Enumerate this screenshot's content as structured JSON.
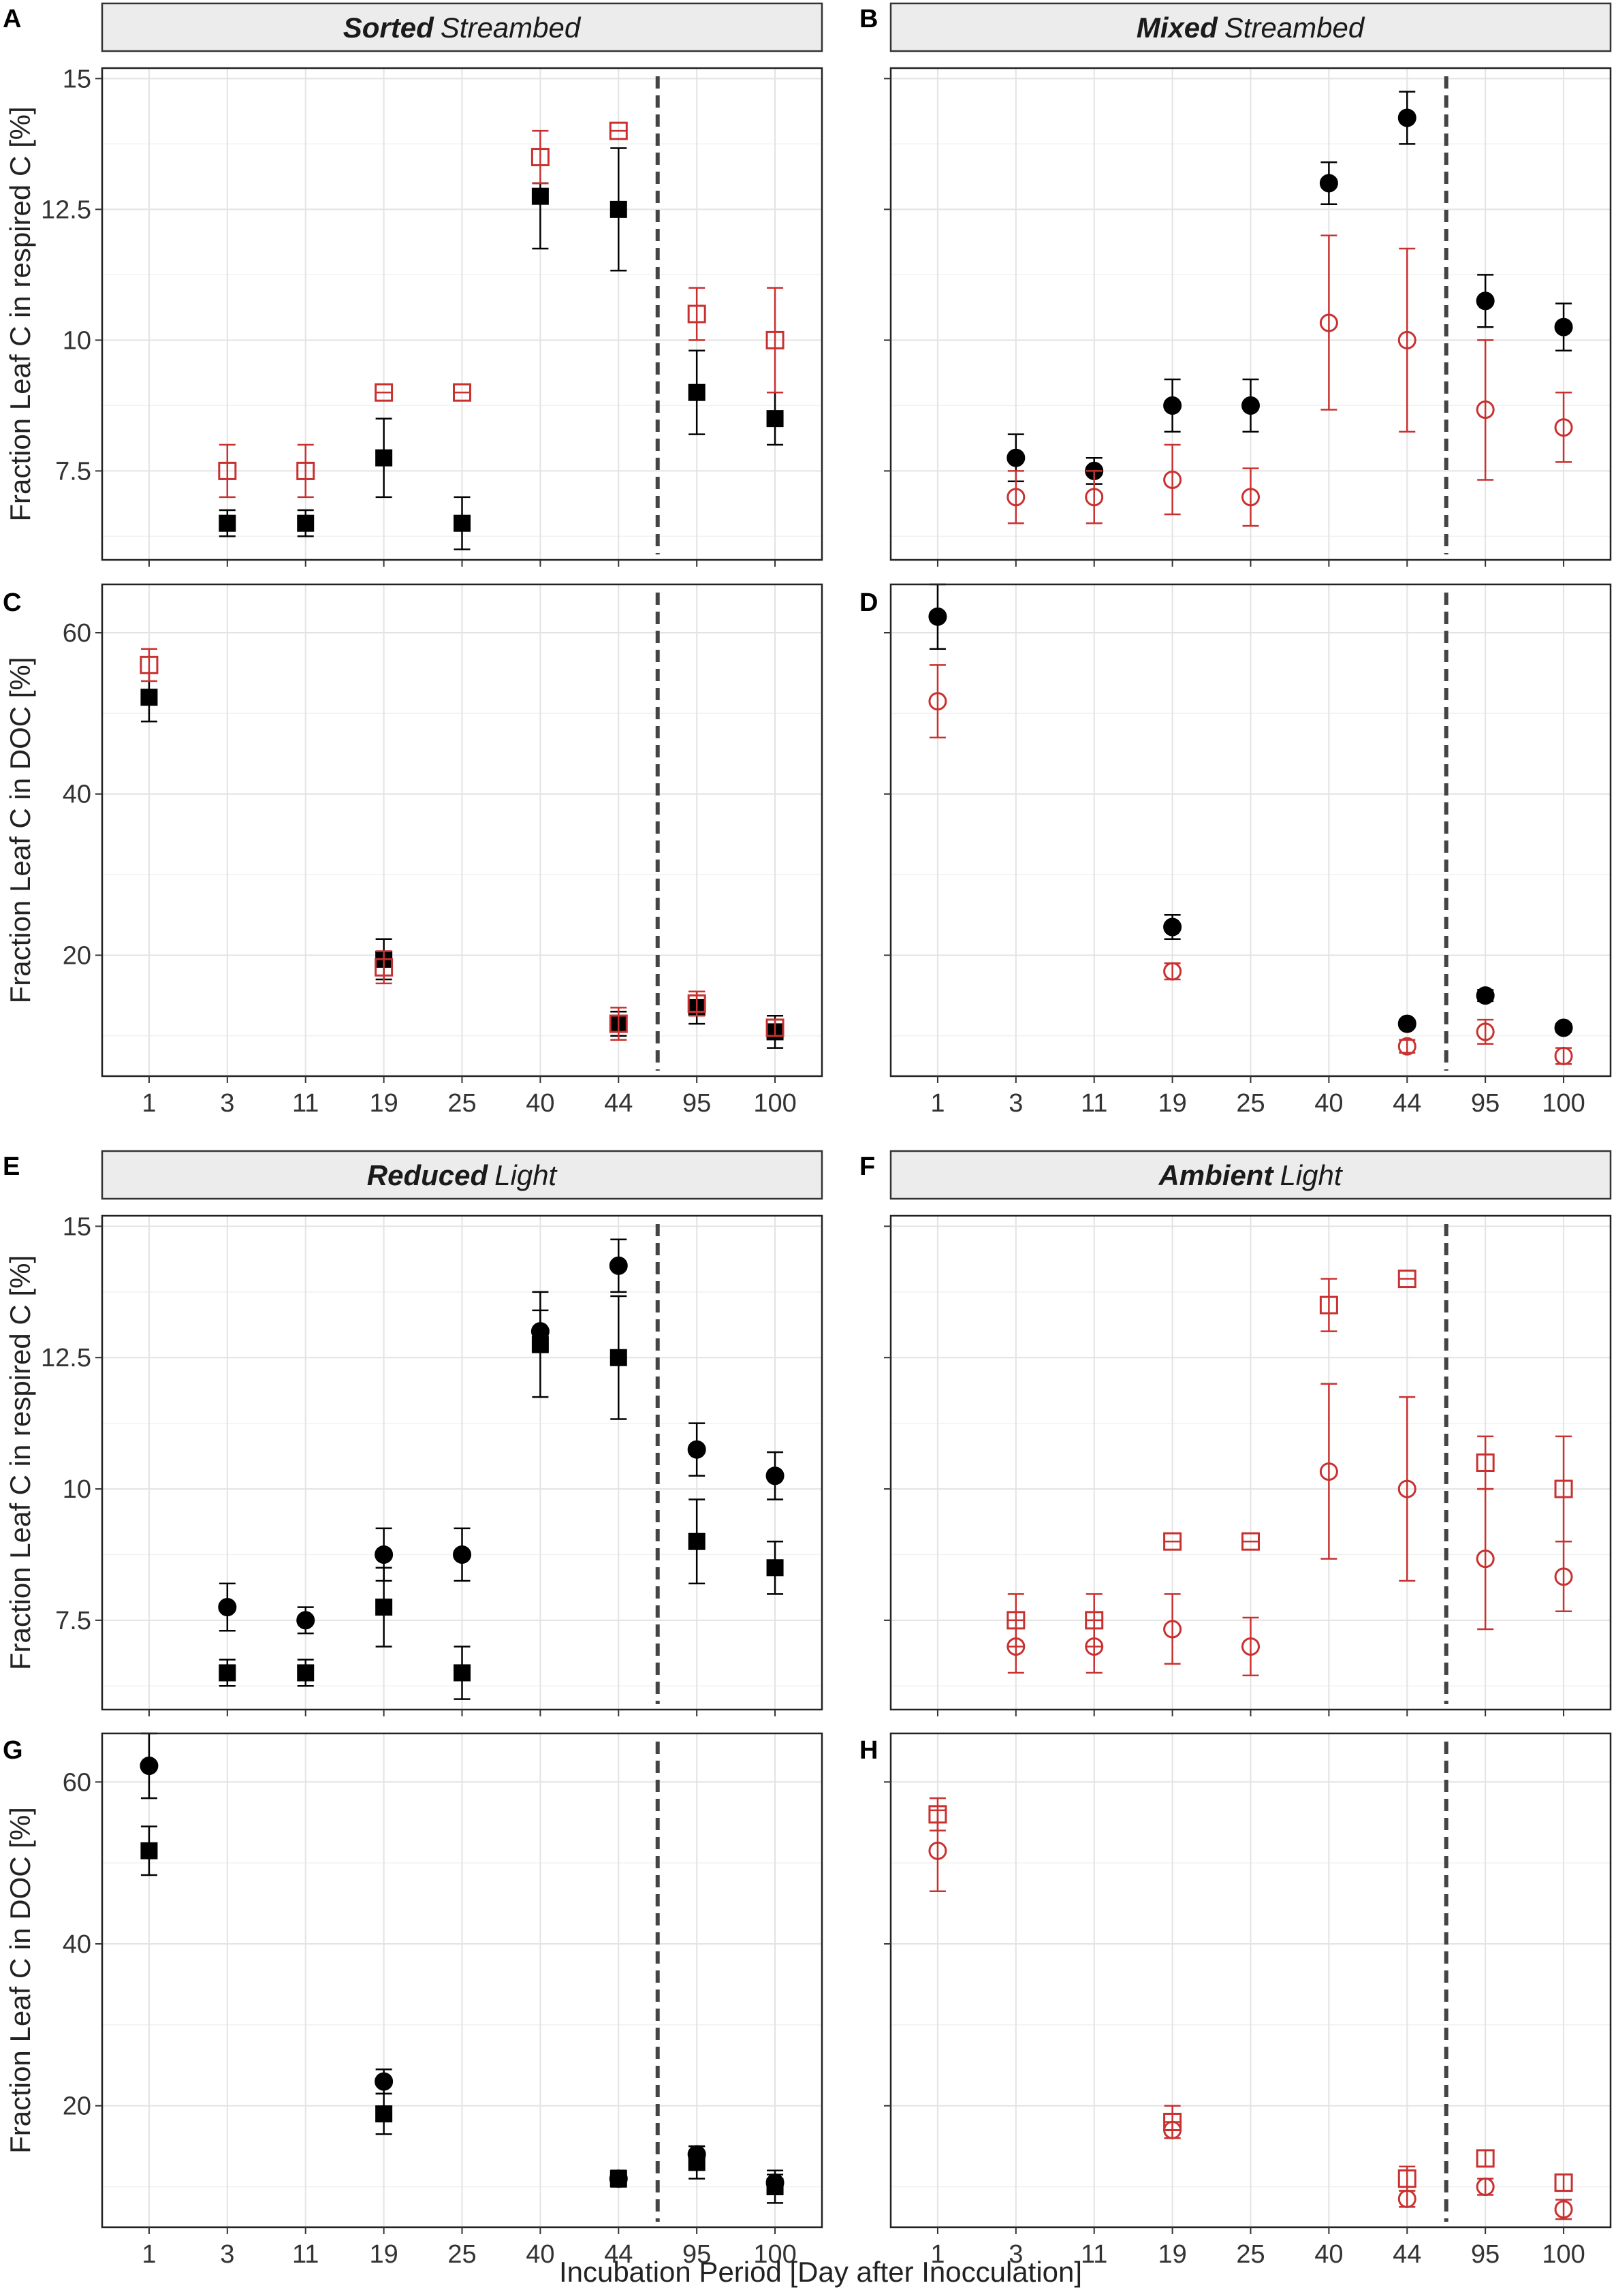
{
  "x_axis_title": "Incubation Period [Day after Inocculation]",
  "x_categories": [
    "1",
    "3",
    "11",
    "19",
    "25",
    "40",
    "44",
    "95",
    "100"
  ],
  "y_titles": {
    "respired": "Fraction Leaf C in respired C [%]",
    "doc": "Fraction Leaf C in DOC [%]"
  },
  "colors": {
    "black": "#000000",
    "red": "#c8312f"
  },
  "strips": [
    {
      "bold": "Sorted",
      "normal": "Streambed"
    },
    {
      "bold": "Mixed",
      "normal": "Streambed"
    },
    {
      "bold": "Reduced",
      "normal": "Light"
    },
    {
      "bold": "Ambient",
      "normal": "Light"
    }
  ],
  "chart_data": [
    {
      "panel": "A",
      "type": "scatter",
      "title": "Sorted Streambed",
      "ylabel": "Fraction Leaf C in respired C [%]",
      "ylim": [
        5.8,
        15.2
      ],
      "yticks": [
        7.5,
        10,
        12.5,
        15
      ],
      "ytick_labels": [
        "7.5",
        "10",
        "12.5",
        "15"
      ],
      "vline_after_category": "44",
      "series": [
        {
          "name": "black squares",
          "color": "black",
          "marker": "square",
          "filled": true,
          "points": [
            {
              "x": "3",
              "y": 6.5,
              "lo": 6.25,
              "hi": 6.75
            },
            {
              "x": "11",
              "y": 6.5,
              "lo": 6.25,
              "hi": 6.75
            },
            {
              "x": "19",
              "y": 7.75,
              "lo": 7.0,
              "hi": 8.5
            },
            {
              "x": "25",
              "y": 6.5,
              "lo": 6.0,
              "hi": 7.0
            },
            {
              "x": "40",
              "y": 12.75,
              "lo": 11.75,
              "hi": 13.0
            },
            {
              "x": "44",
              "y": 12.5,
              "lo": 11.33,
              "hi": 13.67
            },
            {
              "x": "95",
              "y": 9.0,
              "lo": 8.2,
              "hi": 9.8
            },
            {
              "x": "100",
              "y": 8.5,
              "lo": 8.0,
              "hi": 9.0
            }
          ]
        },
        {
          "name": "red open squares",
          "color": "red",
          "marker": "square",
          "filled": false,
          "points": [
            {
              "x": "3",
              "y": 7.5,
              "lo": 7.0,
              "hi": 8.0
            },
            {
              "x": "11",
              "y": 7.5,
              "lo": 7.0,
              "hi": 8.0
            },
            {
              "x": "19",
              "y": 9.0,
              "lo": 9.0,
              "hi": 9.0
            },
            {
              "x": "25",
              "y": 9.0,
              "lo": 9.0,
              "hi": 9.0
            },
            {
              "x": "40",
              "y": 13.5,
              "lo": 13.0,
              "hi": 14.0
            },
            {
              "x": "44",
              "y": 14.0,
              "lo": 14.0,
              "hi": 14.0
            },
            {
              "x": "95",
              "y": 10.5,
              "lo": 10.0,
              "hi": 11.0
            },
            {
              "x": "100",
              "y": 10.0,
              "lo": 9.0,
              "hi": 11.0
            }
          ]
        }
      ]
    },
    {
      "panel": "B",
      "type": "scatter",
      "title": "Mixed Streambed",
      "ylabel": "",
      "ylim": [
        5.8,
        15.2
      ],
      "yticks": [
        7.5,
        10,
        12.5,
        15
      ],
      "ytick_labels": [
        "",
        "",
        "",
        ""
      ],
      "vline_after_category": "44",
      "series": [
        {
          "name": "black circles",
          "color": "black",
          "marker": "circle",
          "filled": true,
          "points": [
            {
              "x": "3",
              "y": 7.75,
              "lo": 7.3,
              "hi": 8.2
            },
            {
              "x": "11",
              "y": 7.5,
              "lo": 7.25,
              "hi": 7.75
            },
            {
              "x": "19",
              "y": 8.75,
              "lo": 8.25,
              "hi": 9.25
            },
            {
              "x": "25",
              "y": 8.75,
              "lo": 8.25,
              "hi": 9.25
            },
            {
              "x": "40",
              "y": 13.0,
              "lo": 12.6,
              "hi": 13.4
            },
            {
              "x": "44",
              "y": 14.25,
              "lo": 13.75,
              "hi": 14.75
            },
            {
              "x": "95",
              "y": 10.75,
              "lo": 10.25,
              "hi": 11.25
            },
            {
              "x": "100",
              "y": 10.25,
              "lo": 9.8,
              "hi": 10.7
            }
          ]
        },
        {
          "name": "red open circles",
          "color": "red",
          "marker": "circle",
          "filled": false,
          "points": [
            {
              "x": "3",
              "y": 7.0,
              "lo": 6.5,
              "hi": 7.5
            },
            {
              "x": "11",
              "y": 7.0,
              "lo": 6.5,
              "hi": 7.5
            },
            {
              "x": "19",
              "y": 7.33,
              "lo": 6.67,
              "hi": 8.0
            },
            {
              "x": "25",
              "y": 7.0,
              "lo": 6.45,
              "hi": 7.55
            },
            {
              "x": "40",
              "y": 10.33,
              "lo": 8.67,
              "hi": 12.0
            },
            {
              "x": "44",
              "y": 10.0,
              "lo": 8.25,
              "hi": 11.75
            },
            {
              "x": "95",
              "y": 8.67,
              "lo": 7.33,
              "hi": 10.0
            },
            {
              "x": "100",
              "y": 8.33,
              "lo": 7.67,
              "hi": 9.0
            }
          ]
        }
      ]
    },
    {
      "panel": "C",
      "type": "scatter",
      "title": "",
      "ylabel": "Fraction Leaf C in DOC [%]",
      "ylim": [
        5,
        66
      ],
      "yticks": [
        20,
        40,
        60
      ],
      "ytick_labels": [
        "20",
        "40",
        "60"
      ],
      "vline_after_category": "44",
      "series": [
        {
          "name": "black squares",
          "color": "black",
          "marker": "square",
          "filled": true,
          "points": [
            {
              "x": "1",
              "y": 52,
              "lo": 49,
              "hi": 55
            },
            {
              "x": "19",
              "y": 19.5,
              "lo": 17,
              "hi": 22
            },
            {
              "x": "44",
              "y": 11.5,
              "lo": 10,
              "hi": 13
            },
            {
              "x": "95",
              "y": 13.5,
              "lo": 11.5,
              "hi": 15.5
            },
            {
              "x": "100",
              "y": 10.5,
              "lo": 8.5,
              "hi": 12.5
            }
          ]
        },
        {
          "name": "red open squares",
          "color": "red",
          "marker": "square",
          "filled": false,
          "points": [
            {
              "x": "1",
              "y": 56,
              "lo": 54,
              "hi": 58
            },
            {
              "x": "19",
              "y": 18.5,
              "lo": 16.5,
              "hi": 20.5
            },
            {
              "x": "44",
              "y": 11.5,
              "lo": 9.5,
              "hi": 13.5
            },
            {
              "x": "95",
              "y": 14,
              "lo": 12.5,
              "hi": 15.5
            },
            {
              "x": "100",
              "y": 11,
              "lo": 10,
              "hi": 12
            }
          ]
        }
      ]
    },
    {
      "panel": "D",
      "type": "scatter",
      "title": "",
      "ylabel": "",
      "ylim": [
        5,
        66
      ],
      "yticks": [
        20,
        40,
        60
      ],
      "ytick_labels": [
        "",
        "",
        ""
      ],
      "vline_after_category": "44",
      "series": [
        {
          "name": "black circles",
          "color": "black",
          "marker": "circle",
          "filled": true,
          "points": [
            {
              "x": "1",
              "y": 62,
              "lo": 58,
              "hi": 66
            },
            {
              "x": "19",
              "y": 23.5,
              "lo": 22,
              "hi": 25
            },
            {
              "x": "44",
              "y": 11.5,
              "lo": 11,
              "hi": 12
            },
            {
              "x": "95",
              "y": 15,
              "lo": 14.3,
              "hi": 15.7
            },
            {
              "x": "100",
              "y": 11,
              "lo": 10.5,
              "hi": 11.5
            }
          ]
        },
        {
          "name": "red open circles",
          "color": "red",
          "marker": "circle",
          "filled": false,
          "points": [
            {
              "x": "1",
              "y": 51.5,
              "lo": 47,
              "hi": 56
            },
            {
              "x": "19",
              "y": 18,
              "lo": 17,
              "hi": 19
            },
            {
              "x": "44",
              "y": 8.7,
              "lo": 7.9,
              "hi": 9.5
            },
            {
              "x": "95",
              "y": 10.5,
              "lo": 9,
              "hi": 12
            },
            {
              "x": "100",
              "y": 7.5,
              "lo": 6.5,
              "hi": 8.5
            }
          ]
        }
      ]
    },
    {
      "panel": "E",
      "type": "scatter",
      "title": "Reduced Light",
      "ylabel": "Fraction Leaf C in respired C [%]",
      "ylim": [
        5.8,
        15.2
      ],
      "yticks": [
        7.5,
        10,
        12.5,
        15
      ],
      "ytick_labels": [
        "7.5",
        "10",
        "12.5",
        "15"
      ],
      "vline_after_category": "44",
      "series": [
        {
          "name": "black circles",
          "color": "black",
          "marker": "circle",
          "filled": true,
          "points": [
            {
              "x": "3",
              "y": 7.75,
              "lo": 7.3,
              "hi": 8.2
            },
            {
              "x": "11",
              "y": 7.5,
              "lo": 7.25,
              "hi": 7.75
            },
            {
              "x": "19",
              "y": 8.75,
              "lo": 8.25,
              "hi": 9.25
            },
            {
              "x": "25",
              "y": 8.75,
              "lo": 8.25,
              "hi": 9.25
            },
            {
              "x": "40",
              "y": 13.0,
              "lo": 12.6,
              "hi": 13.75
            },
            {
              "x": "44",
              "y": 14.25,
              "lo": 13.75,
              "hi": 14.75
            },
            {
              "x": "95",
              "y": 10.75,
              "lo": 10.25,
              "hi": 11.25
            },
            {
              "x": "100",
              "y": 10.25,
              "lo": 9.8,
              "hi": 10.7
            }
          ]
        },
        {
          "name": "black squares",
          "color": "black",
          "marker": "square",
          "filled": true,
          "points": [
            {
              "x": "3",
              "y": 6.5,
              "lo": 6.25,
              "hi": 6.75
            },
            {
              "x": "11",
              "y": 6.5,
              "lo": 6.25,
              "hi": 6.75
            },
            {
              "x": "19",
              "y": 7.75,
              "lo": 7.0,
              "hi": 8.5
            },
            {
              "x": "25",
              "y": 6.5,
              "lo": 6.0,
              "hi": 7.0
            },
            {
              "x": "40",
              "y": 12.75,
              "lo": 11.75,
              "hi": 13.4
            },
            {
              "x": "44",
              "y": 12.5,
              "lo": 11.33,
              "hi": 13.67
            },
            {
              "x": "95",
              "y": 9.0,
              "lo": 8.2,
              "hi": 9.8
            },
            {
              "x": "100",
              "y": 8.5,
              "lo": 8.0,
              "hi": 9.0
            }
          ]
        }
      ]
    },
    {
      "panel": "F",
      "type": "scatter",
      "title": "Ambient Light",
      "ylabel": "",
      "ylim": [
        5.8,
        15.2
      ],
      "yticks": [
        7.5,
        10,
        12.5,
        15
      ],
      "ytick_labels": [
        "",
        "",
        "",
        ""
      ],
      "vline_after_category": "44",
      "series": [
        {
          "name": "red open squares",
          "color": "red",
          "marker": "square",
          "filled": false,
          "points": [
            {
              "x": "3",
              "y": 7.5,
              "lo": 7.0,
              "hi": 8.0
            },
            {
              "x": "11",
              "y": 7.5,
              "lo": 7.0,
              "hi": 8.0
            },
            {
              "x": "19",
              "y": 9.0,
              "lo": 9.0,
              "hi": 9.0
            },
            {
              "x": "25",
              "y": 9.0,
              "lo": 9.0,
              "hi": 9.0
            },
            {
              "x": "40",
              "y": 13.5,
              "lo": 13.0,
              "hi": 14.0
            },
            {
              "x": "44",
              "y": 14.0,
              "lo": 14.0,
              "hi": 14.0
            },
            {
              "x": "95",
              "y": 10.5,
              "lo": 10.0,
              "hi": 11.0
            },
            {
              "x": "100",
              "y": 10.0,
              "lo": 9.0,
              "hi": 11.0
            }
          ]
        },
        {
          "name": "red open circles",
          "color": "red",
          "marker": "circle",
          "filled": false,
          "points": [
            {
              "x": "3",
              "y": 7.0,
              "lo": 6.5,
              "hi": 7.5
            },
            {
              "x": "11",
              "y": 7.0,
              "lo": 6.5,
              "hi": 7.5
            },
            {
              "x": "19",
              "y": 7.33,
              "lo": 6.67,
              "hi": 8.0
            },
            {
              "x": "25",
              "y": 7.0,
              "lo": 6.45,
              "hi": 7.55
            },
            {
              "x": "40",
              "y": 10.33,
              "lo": 8.67,
              "hi": 12.0
            },
            {
              "x": "44",
              "y": 10.0,
              "lo": 8.25,
              "hi": 11.75
            },
            {
              "x": "95",
              "y": 8.67,
              "lo": 7.33,
              "hi": 10.0
            },
            {
              "x": "100",
              "y": 8.33,
              "lo": 7.67,
              "hi": 9.0
            }
          ]
        }
      ]
    },
    {
      "panel": "G",
      "type": "scatter",
      "title": "",
      "ylabel": "Fraction Leaf C in DOC [%]",
      "ylim": [
        5,
        66
      ],
      "yticks": [
        20,
        40,
        60
      ],
      "ytick_labels": [
        "20",
        "40",
        "60"
      ],
      "vline_after_category": "44",
      "series": [
        {
          "name": "black circles",
          "color": "black",
          "marker": "circle",
          "filled": true,
          "points": [
            {
              "x": "1",
              "y": 62,
              "lo": 58,
              "hi": 66
            },
            {
              "x": "19",
              "y": 23,
              "lo": 21.5,
              "hi": 24.5
            },
            {
              "x": "44",
              "y": 11,
              "lo": 10.5,
              "hi": 11.5
            },
            {
              "x": "95",
              "y": 14,
              "lo": 13,
              "hi": 15
            },
            {
              "x": "100",
              "y": 10.5,
              "lo": 9.5,
              "hi": 11.5
            }
          ]
        },
        {
          "name": "black squares",
          "color": "black",
          "marker": "square",
          "filled": true,
          "points": [
            {
              "x": "1",
              "y": 51.5,
              "lo": 48.5,
              "hi": 54.5
            },
            {
              "x": "19",
              "y": 19,
              "lo": 16.5,
              "hi": 21.5
            },
            {
              "x": "44",
              "y": 11,
              "lo": 10,
              "hi": 12
            },
            {
              "x": "95",
              "y": 13,
              "lo": 11,
              "hi": 15
            },
            {
              "x": "100",
              "y": 10,
              "lo": 8,
              "hi": 12
            }
          ]
        }
      ]
    },
    {
      "panel": "H",
      "type": "scatter",
      "title": "",
      "ylabel": "",
      "ylim": [
        5,
        66
      ],
      "yticks": [
        20,
        40,
        60
      ],
      "ytick_labels": [
        "",
        "",
        ""
      ],
      "vline_after_category": "44",
      "series": [
        {
          "name": "red open squares",
          "color": "red",
          "marker": "square",
          "filled": false,
          "points": [
            {
              "x": "1",
              "y": 56,
              "lo": 54,
              "hi": 58
            },
            {
              "x": "19",
              "y": 18,
              "lo": 16,
              "hi": 20
            },
            {
              "x": "44",
              "y": 11,
              "lo": 9.5,
              "hi": 12.5
            },
            {
              "x": "95",
              "y": 13.5,
              "lo": 12.5,
              "hi": 14.5
            },
            {
              "x": "100",
              "y": 10.5,
              "lo": 9.5,
              "hi": 11.5
            }
          ]
        },
        {
          "name": "red open circles",
          "color": "red",
          "marker": "circle",
          "filled": false,
          "points": [
            {
              "x": "1",
              "y": 51.5,
              "lo": 46.5,
              "hi": 56.5
            },
            {
              "x": "19",
              "y": 17,
              "lo": 16,
              "hi": 18
            },
            {
              "x": "44",
              "y": 8.5,
              "lo": 7.5,
              "hi": 9.5
            },
            {
              "x": "95",
              "y": 10,
              "lo": 9,
              "hi": 11
            },
            {
              "x": "100",
              "y": 7.2,
              "lo": 6,
              "hi": 8.4
            }
          ]
        }
      ]
    }
  ]
}
